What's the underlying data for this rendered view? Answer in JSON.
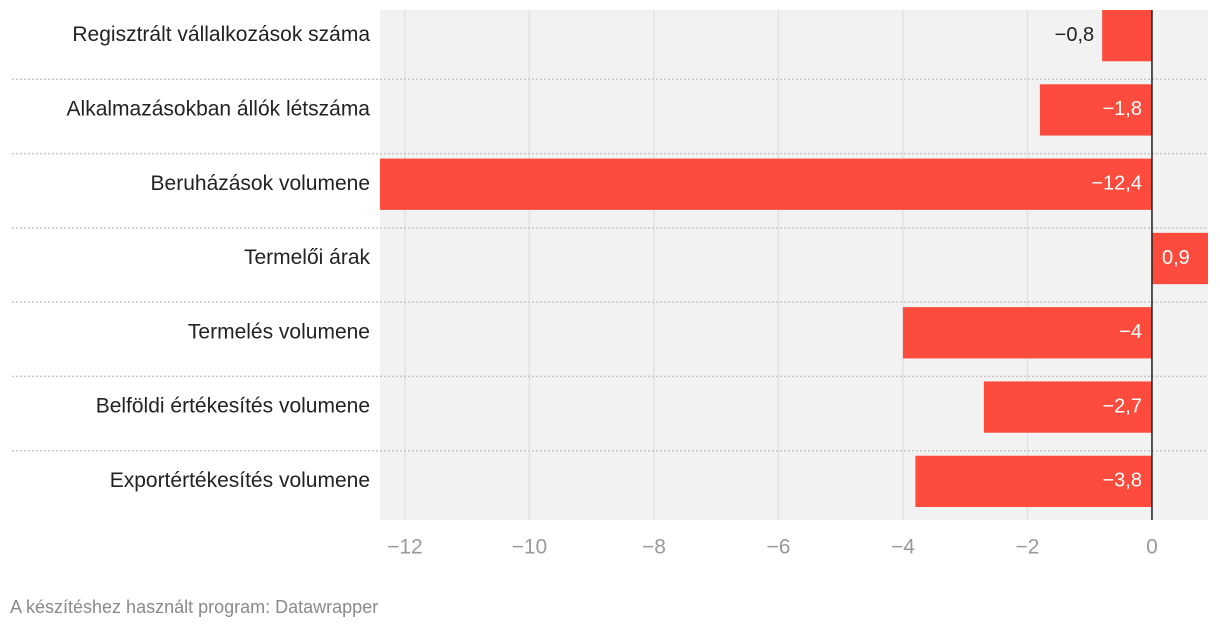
{
  "chart_data": {
    "type": "bar",
    "orientation": "horizontal",
    "categories": [
      "Regisztrált vállalkozások száma",
      "Alkalmazásokban állók létszáma",
      "Beruházások volumene",
      "Termelői árak",
      "Termelés volumene",
      "Belföldi értékesítés volumene",
      "Exportértékesítés volumene"
    ],
    "values": [
      -0.8,
      -1.8,
      -12.4,
      0.9,
      -4,
      -2.7,
      -3.8
    ],
    "value_labels": [
      "−0,8",
      "−1,8",
      "−12,4",
      "0,9",
      "−4",
      "−2,7",
      "−3,8"
    ],
    "color": "#fd4b3d",
    "xlim": [
      -12.4,
      0.9
    ],
    "xticks": [
      {
        "value": -12,
        "label": "−12"
      },
      {
        "value": -10,
        "label": "−10"
      },
      {
        "value": -8,
        "label": "−8"
      },
      {
        "value": -6,
        "label": "−6"
      },
      {
        "value": -4,
        "label": "−4"
      },
      {
        "value": -2,
        "label": "−2"
      },
      0
    ],
    "grid": true,
    "footer": "A készítéshez használt program: Datawrapper"
  }
}
